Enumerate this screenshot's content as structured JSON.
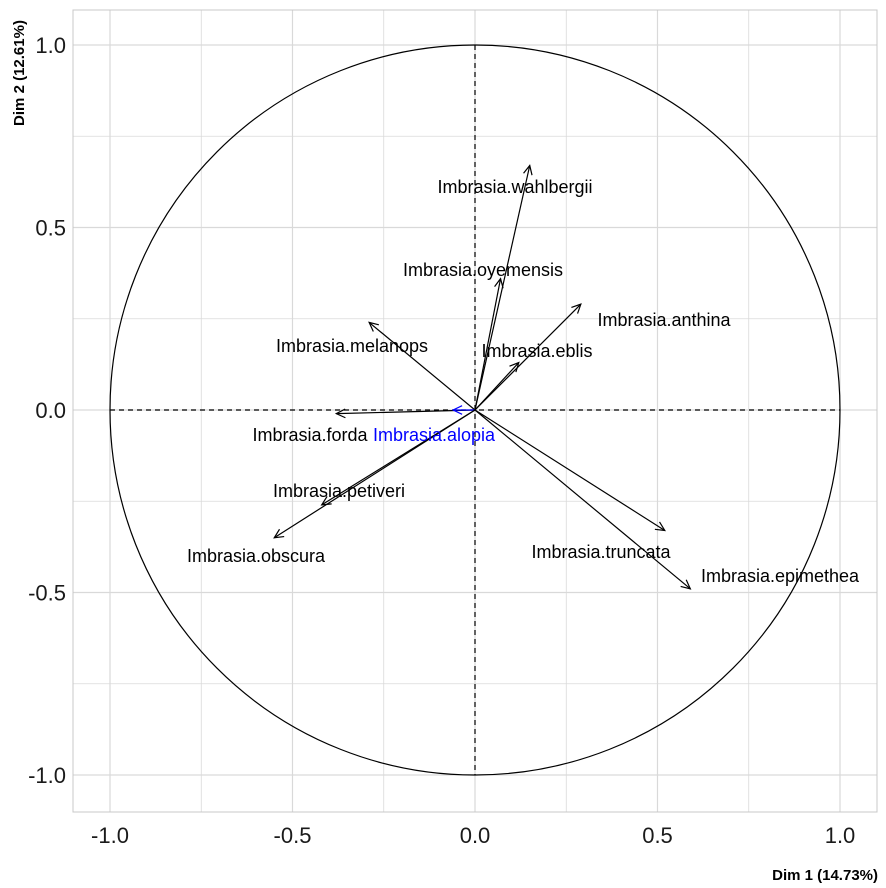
{
  "chart_data": {
    "type": "scatter",
    "subtype": "pca-correlation-circle",
    "title": "",
    "xlabel": "Dim 1 (14.73%)",
    "ylabel": "Dim 2 (12.61%)",
    "xlim": [
      -1.1,
      1.1
    ],
    "ylim": [
      -1.1,
      1.1
    ],
    "grid": true,
    "legend": "none",
    "x_ticks": [
      "-1.0",
      "-0.5",
      "0.0",
      "0.5",
      "1.0"
    ],
    "y_ticks": [
      "-1.0",
      "-0.5",
      "0.0",
      "0.5",
      "1.0"
    ],
    "colors": {
      "default": "#000000",
      "highlight": "#0000ff",
      "grid": "#d9d9d9"
    },
    "variables": [
      {
        "name": "Imbrasia.wahlbergii",
        "x": 0.15,
        "y": 0.67
      },
      {
        "name": "Imbrasia.oyemensis",
        "x": 0.07,
        "y": 0.36
      },
      {
        "name": "Imbrasia.anthina",
        "x": 0.29,
        "y": 0.29
      },
      {
        "name": "Imbrasia.eblis",
        "x": 0.12,
        "y": 0.13
      },
      {
        "name": "Imbrasia.melanops",
        "x": -0.29,
        "y": 0.24
      },
      {
        "name": "Imbrasia.forda",
        "x": -0.38,
        "y": -0.01
      },
      {
        "name": "Imbrasia.alopia",
        "x": -0.06,
        "y": 0.0,
        "highlight": true
      },
      {
        "name": "Imbrasia.petiveri",
        "x": -0.42,
        "y": -0.26
      },
      {
        "name": "Imbrasia.obscura",
        "x": -0.55,
        "y": -0.35
      },
      {
        "name": "Imbrasia.truncata",
        "x": 0.52,
        "y": -0.33
      },
      {
        "name": "Imbrasia.epimethea",
        "x": 0.59,
        "y": -0.49
      }
    ]
  }
}
